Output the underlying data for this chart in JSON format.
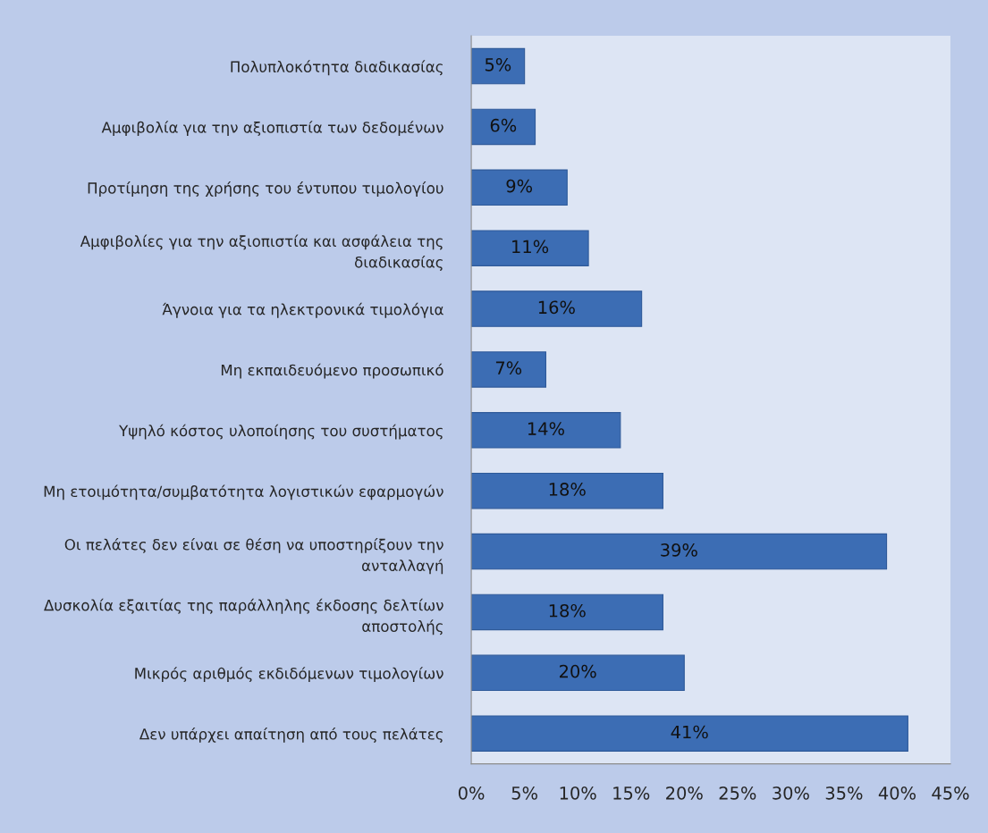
{
  "chart_data": {
    "type": "bar",
    "orientation": "horizontal",
    "categories": [
      "Πολυπλοκότητα διαδικασίας",
      "Αμφιβολία για την αξιοπιστία των δεδομένων",
      "Προτίμηση της χρήσης του έντυπου τιμολογίου",
      "Αμφιβολίες για την αξιοπιστία και ασφάλεια της\nδιαδικασίας",
      "Άγνοια για τα ηλεκτρονικά τιμολόγια",
      "Μη εκπαιδευόμενο προσωπικό",
      "Υψηλό κόστος υλοποίησης του συστήματος",
      "Μη ετοιμότητα/συμβατότητα λογιστικών εφαρμογών",
      "Οι πελάτες δεν είναι σε θέση να υποστηρίξουν την\nανταλλαγή",
      "Δυσκολία εξαιτίας της παράλληλης έκδοσης δελτίων\nαποστολής",
      "Μικρός αριθμός εκδιδόμενων τιμολογίων",
      "Δεν υπάρχει απαίτηση από τους πελάτες"
    ],
    "values": [
      5,
      6,
      9,
      11,
      16,
      7,
      14,
      18,
      39,
      18,
      20,
      41
    ],
    "value_labels": [
      "5%",
      "6%",
      "9%",
      "11%",
      "16%",
      "7%",
      "14%",
      "18%",
      "39%",
      "18%",
      "20%",
      "41%"
    ],
    "color": "#3c6db4",
    "xlim": [
      0,
      45
    ],
    "xticks": [
      {
        "value": 0,
        "label": "0%"
      },
      {
        "value": 5,
        "label": "5%"
      },
      {
        "value": 10,
        "label": "10%"
      },
      {
        "value": 15,
        "label": "15%"
      },
      {
        "value": 20,
        "label": "20%"
      },
      {
        "value": 25,
        "label": "25%"
      },
      {
        "value": 30,
        "label": "30%"
      },
      {
        "value": 35,
        "label": "35%"
      },
      {
        "value": 40,
        "label": "40%"
      },
      {
        "value": 45,
        "label": "45%"
      }
    ],
    "grid": false,
    "legend": false
  }
}
